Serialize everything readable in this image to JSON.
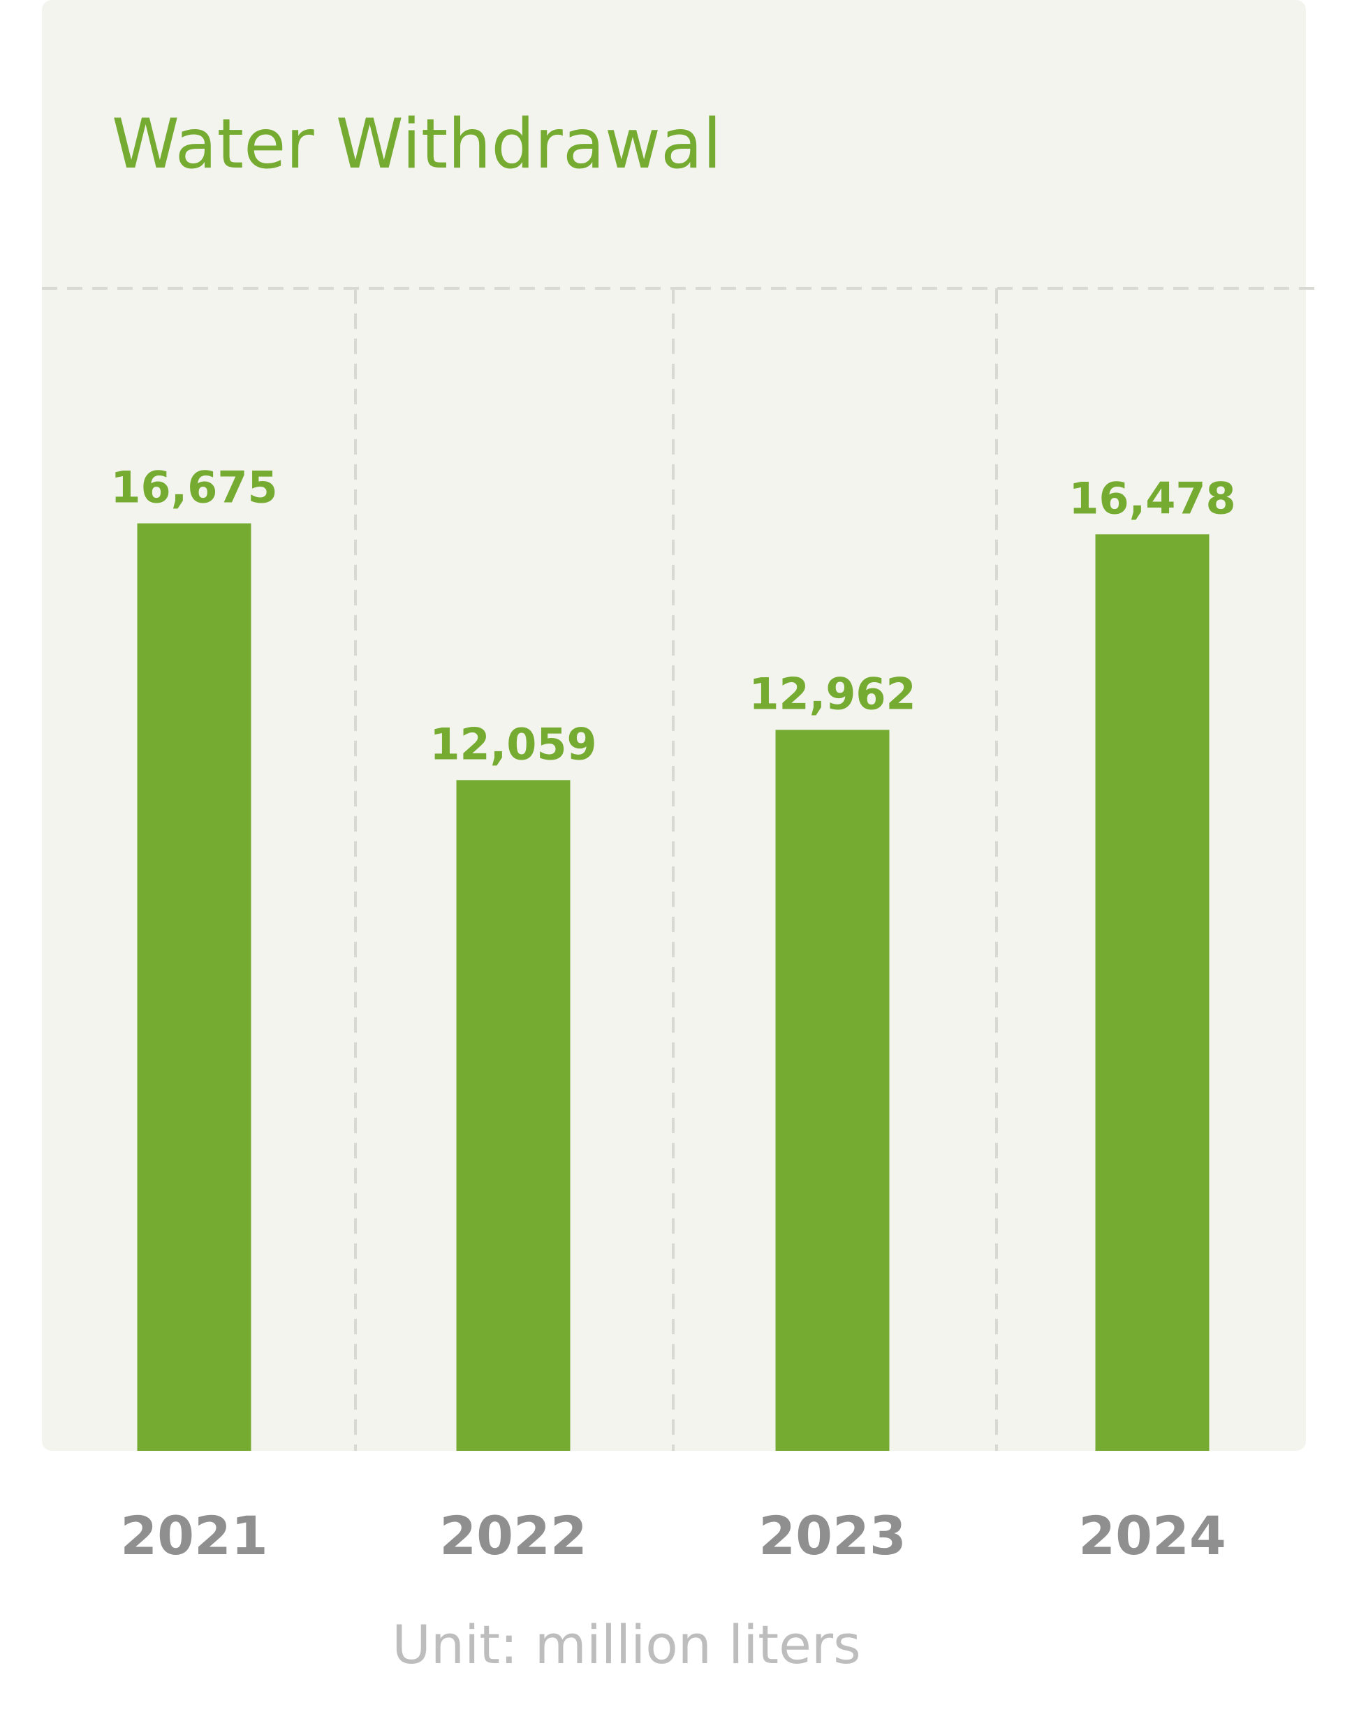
{
  "colors": {
    "panel_background": "#f4f4ef",
    "bar": "#76ab32",
    "title": "#76ab32",
    "value_label": "#76ab32",
    "category_label": "#8f8f8f",
    "unit_label": "#bdbdbd",
    "grid": "#d9d9d4"
  },
  "chart_data": {
    "type": "bar",
    "title": "Water Withdrawal",
    "categories": [
      "2021",
      "2022",
      "2023",
      "2024"
    ],
    "values": [
      16675,
      12059,
      12962,
      16478
    ],
    "value_labels": [
      "16,675",
      "12,059",
      "12,962",
      "16,478"
    ],
    "unit": "Unit: million liters",
    "xlabel": "",
    "ylabel": "",
    "ylim": [
      0,
      20900
    ],
    "grid": "dashed vertical separators between categories",
    "legend": "none"
  }
}
